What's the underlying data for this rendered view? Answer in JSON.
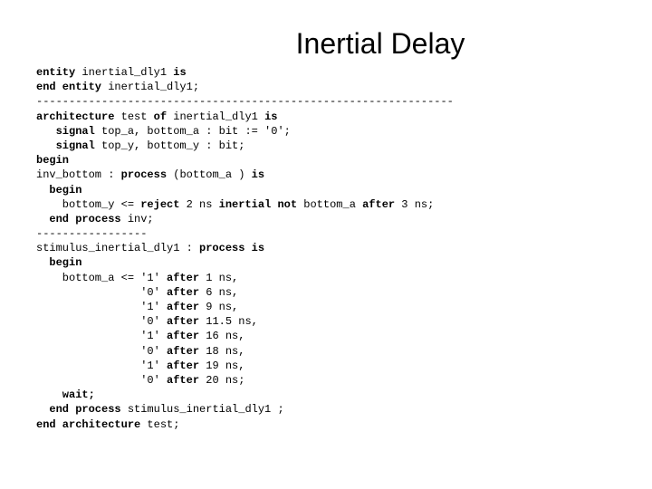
{
  "title": "Inertial Delay",
  "code": {
    "l1a": "entity",
    "l1b": " inertial_dly1 ",
    "l1c": "is",
    "l2a": "end entity",
    "l2b": " inertial_dly1;",
    "l3": "----------------------------------------------------------------",
    "l4a": "architecture",
    "l4b": " test ",
    "l4c": "of",
    "l4d": " inertial_dly1 ",
    "l4e": "is",
    "l5a": "   signal",
    "l5b": " top_a, bottom_a : bit := '0';",
    "l6a": "   signal",
    "l6b": " top_y, bottom_y : bit;",
    "l7": "begin",
    "l8a": "inv_bottom : ",
    "l8b": "process",
    "l8c": " (bottom_a ) ",
    "l8d": "is",
    "l9a": "  begin",
    "l10a": "    bottom_y <= ",
    "l10b": "reject",
    "l10c": " 2 ns ",
    "l10d": "inertial not",
    "l10e": " bottom_a ",
    "l10f": "after",
    "l10g": " 3 ns;",
    "l11a": "  end process",
    "l11b": " inv;",
    "l12": "-----------------",
    "l13a": "stimulus_inertial_dly1 : ",
    "l13b": "process is",
    "l14a": "  begin",
    "l15a": "    bottom_a <= '1' ",
    "l15b": "after",
    "l15c": " 1 ns,",
    "l16a": "                '0' ",
    "l16b": "after",
    "l16c": " 6 ns,",
    "l17a": "                '1' ",
    "l17b": "after",
    "l17c": " 9 ns,",
    "l18a": "                '0' ",
    "l18b": "after",
    "l18c": " 11.5 ns,",
    "l19a": "                '1' ",
    "l19b": "after",
    "l19c": " 16 ns,",
    "l20a": "                '0' ",
    "l20b": "after",
    "l20c": " 18 ns,",
    "l21a": "                '1' ",
    "l21b": "after",
    "l21c": " 19 ns,",
    "l22a": "                '0' ",
    "l22b": "after",
    "l22c": " 20 ns;",
    "l23a": "    wait;",
    "l24a": "  end process",
    "l24b": " stimulus_inertial_dly1 ;",
    "l25a": "end architecture",
    "l25b": " test;"
  }
}
